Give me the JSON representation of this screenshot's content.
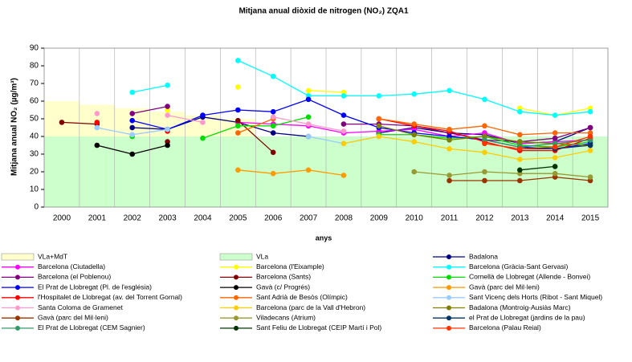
{
  "chart_data": {
    "type": "line",
    "title": "Mitjana anual diòxid de nitrogen (NO₂) ZQA1",
    "y_label": "Mitjana anual NO₂ (µg/m³)",
    "x_label": "anys",
    "categories": [
      "2000",
      "2001",
      "2002",
      "2003",
      "2004",
      "2005",
      "2006",
      "2007",
      "2008",
      "2009",
      "2010",
      "2011",
      "2012",
      "2013",
      "2014",
      "2015"
    ],
    "ylim": [
      0,
      90
    ],
    "yticks": [
      0,
      10,
      20,
      30,
      40,
      50,
      60,
      70,
      80,
      90
    ],
    "series": [
      {
        "name": "VLa+MdT",
        "type": "bar",
        "color": "#ffffcc",
        "values": [
          60,
          58,
          56,
          54,
          52,
          50,
          40,
          40,
          40,
          40,
          40,
          40,
          40,
          40,
          40,
          40
        ]
      },
      {
        "name": "VLa",
        "type": "bar",
        "color": "#ccffcc",
        "values": [
          40,
          40,
          40,
          40,
          40,
          40,
          40,
          40,
          40,
          40,
          40,
          40,
          40,
          40,
          40,
          40
        ]
      },
      {
        "name": "Badalona",
        "color": "#000080",
        "values": [
          null,
          null,
          45,
          44,
          51,
          48,
          42,
          40,
          null,
          42,
          45,
          42,
          41,
          36,
          37,
          45
        ]
      },
      {
        "name": "Barcelona (Ciutadella)",
        "color": "#ff00ff",
        "values": [
          null,
          null,
          null,
          null,
          null,
          48,
          47,
          46,
          42,
          43,
          44,
          40,
          42,
          36,
          37,
          38
        ]
      },
      {
        "name": "Barcelona (l'Eixample)",
        "color": "#ffff00",
        "values": [
          null,
          null,
          null,
          55,
          null,
          68,
          null,
          66,
          65,
          null,
          null,
          null,
          null,
          56,
          52,
          56
        ]
      },
      {
        "name": "Barcelona (Gràcia-Sant Gervasi)",
        "color": "#00ffff",
        "values": [
          null,
          null,
          65,
          69,
          null,
          83,
          74,
          63,
          63,
          63,
          64,
          66,
          61,
          54,
          52,
          54
        ]
      },
      {
        "name": "Barcelona (el Poblenou)",
        "color": "#800080",
        "values": [
          null,
          null,
          53,
          57,
          null,
          null,
          null,
          null,
          47,
          47,
          46,
          42,
          38,
          37,
          39,
          45
        ]
      },
      {
        "name": "Barcelona (Sants)",
        "color": "#800000",
        "values": [
          48,
          47,
          null,
          37,
          null,
          49,
          31,
          null,
          null,
          null,
          null,
          null,
          null,
          null,
          null,
          null
        ]
      },
      {
        "name": "Cornellà de Llobregat (Allende - Bonvei)",
        "color": "#00dd00",
        "values": [
          null,
          null,
          40,
          null,
          39,
          46,
          46,
          51,
          null,
          41,
          41,
          39,
          40,
          35,
          34,
          37
        ]
      },
      {
        "name": "El Prat de Llobregat (Pl. de l'església)",
        "color": "#0000ff",
        "values": [
          null,
          null,
          49,
          44,
          52,
          55,
          54,
          61,
          52,
          45,
          42,
          40,
          38,
          34,
          33,
          36
        ]
      },
      {
        "name": "Gavà (c/ Progrés)",
        "color": "#000000",
        "values": [
          null,
          35,
          30,
          35,
          null,
          null,
          null,
          null,
          null,
          null,
          null,
          null,
          null,
          null,
          null,
          null
        ]
      },
      {
        "name": "Gavà (parc del Mil·leni)",
        "color": "#ff9900",
        "values": [
          null,
          null,
          null,
          null,
          null,
          21,
          19,
          21,
          18,
          null,
          null,
          null,
          null,
          null,
          null,
          null
        ]
      },
      {
        "name": "l'Hospitalet de Llobregat (av. del Torrent Gornal)",
        "color": "#ff0000",
        "values": [
          null,
          48,
          null,
          43,
          null,
          null,
          null,
          null,
          null,
          50,
          46,
          43,
          37,
          32,
          32,
          39
        ]
      },
      {
        "name": "Sant Adrià de Besòs (Olímpic)",
        "color": "#ff6600",
        "values": [
          null,
          null,
          null,
          null,
          null,
          42,
          50,
          null,
          null,
          50,
          47,
          44,
          46,
          41,
          42,
          42
        ]
      },
      {
        "name": "Sant Vicenç dels Horts (Ribot - Sant Miquel)",
        "color": "#99ccff",
        "values": [
          null,
          45,
          41,
          44,
          null,
          null,
          null,
          40,
          36,
          40,
          null,
          null,
          null,
          null,
          null,
          null
        ]
      },
      {
        "name": "Santa Coloma de Gramenet",
        "color": "#ff99cc",
        "values": [
          null,
          53,
          null,
          52,
          48,
          null,
          51,
          47,
          43,
          null,
          null,
          null,
          null,
          null,
          null,
          null
        ]
      },
      {
        "name": "Barcelona (parc de la Vall d'Hebron)",
        "color": "#ffcc00",
        "values": [
          null,
          null,
          null,
          null,
          null,
          null,
          null,
          null,
          36,
          40,
          37,
          33,
          31,
          27,
          28,
          32
        ]
      },
      {
        "name": "Badalona (Montroig-Ausiàs Marc)",
        "color": "#808000",
        "values": [
          null,
          null,
          null,
          null,
          null,
          null,
          null,
          null,
          null,
          46,
          41,
          38,
          40,
          37,
          36,
          35
        ]
      },
      {
        "name": "Gavà (parc del Mil·leni)",
        "color": "#993300",
        "values": [
          null,
          null,
          null,
          null,
          null,
          null,
          null,
          null,
          null,
          null,
          null,
          15,
          15,
          15,
          17,
          15
        ]
      },
      {
        "name": "Viladecans (Atrium)",
        "color": "#999933",
        "values": [
          null,
          null,
          null,
          null,
          null,
          null,
          null,
          null,
          null,
          null,
          20,
          18,
          20,
          19,
          19,
          17
        ]
      },
      {
        "name": "el Prat de Llobregat (jardins de la pau)",
        "color": "#003366",
        "values": [
          null,
          null,
          null,
          null,
          null,
          null,
          null,
          null,
          null,
          null,
          null,
          null,
          null,
          33,
          33,
          35
        ]
      },
      {
        "name": "El Prat de Llobregat (CEM Sagnier)",
        "color": "#339966",
        "values": [
          null,
          null,
          null,
          null,
          null,
          null,
          null,
          null,
          null,
          null,
          null,
          null,
          38,
          34,
          36,
          38
        ]
      },
      {
        "name": "Sant Feliu de Llobregat (CEIP Martí i Pol)",
        "color": "#003300",
        "values": [
          null,
          null,
          null,
          null,
          null,
          null,
          null,
          null,
          null,
          null,
          null,
          null,
          null,
          21,
          23,
          null
        ]
      },
      {
        "name": "Barcelona (Palau Reial)",
        "color": "#ff3300",
        "values": [
          null,
          null,
          null,
          null,
          null,
          null,
          null,
          null,
          null,
          null,
          null,
          null,
          36,
          33,
          34,
          40
        ]
      }
    ]
  }
}
